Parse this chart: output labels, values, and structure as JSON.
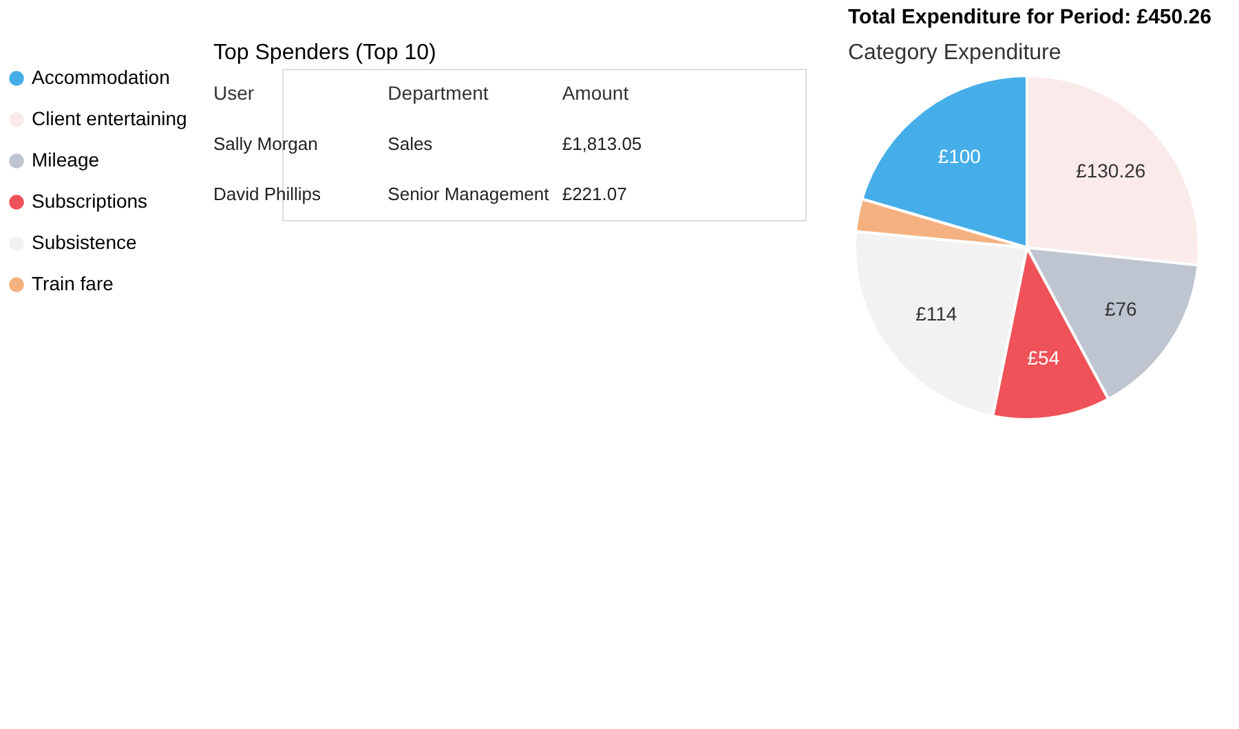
{
  "chart_data": [
    {
      "type": "other",
      "title": "Top Spenders (Top 10)",
      "annotations": [
        "User",
        "Department",
        "Amount",
        "Sally Morgan",
        "Sales",
        "£1,813.05",
        "David Phillips",
        "Senior Management",
        "£221.07"
      ]
    },
    {
      "type": "pie",
      "title": "Total Expenditure for Period: £450.26",
      "subtitle": "Category Expenditure",
      "categories": [
        "Accommodation",
        "Client entertaining",
        "Mileage",
        "Subscriptions",
        "Subsistence",
        "Train fare"
      ],
      "values": [
        100,
        130.26,
        76,
        54,
        114,
        15
      ],
      "colors": [
        "#45aee8",
        "#fbeaea",
        "#bec4d0",
        "#ef5258",
        "#f2f2f2",
        "#f4b07f"
      ],
      "value_labels": [
        "£100",
        "£130.26",
        "£76",
        "£54",
        "£114",
        null
      ],
      "legend": "left"
    }
  ]
}
